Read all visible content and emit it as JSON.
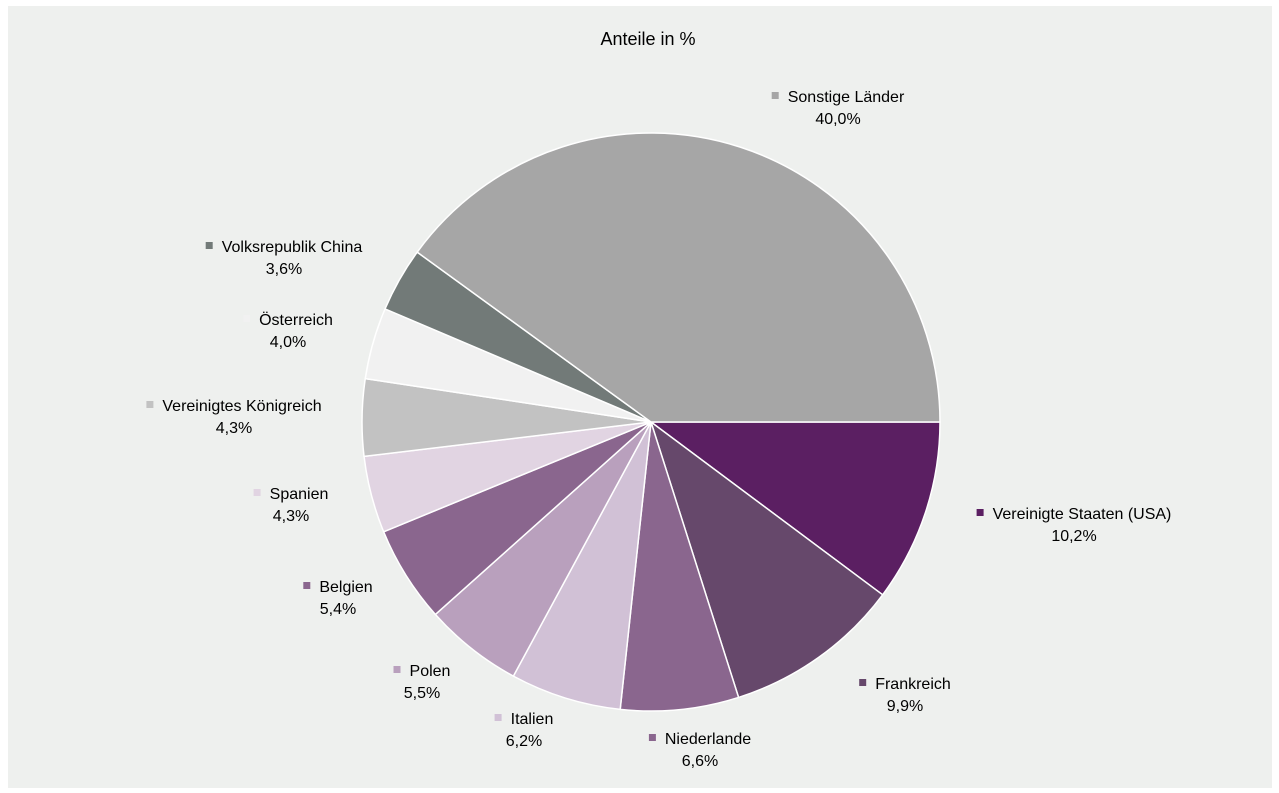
{
  "chart_data": {
    "type": "pie",
    "title": "Anteile in %",
    "start": "3 o'clock",
    "direction": "clockwise",
    "slices": [
      {
        "label": "Vereinigte Staaten (USA)",
        "value": 10.2,
        "value_label": "10,2%",
        "color": "#5b1f62"
      },
      {
        "label": "Frankreich",
        "value": 9.9,
        "value_label": "9,9%",
        "color": "#66486b"
      },
      {
        "label": "Niederlande",
        "value": 6.6,
        "value_label": "6,6%",
        "color": "#8a668e"
      },
      {
        "label": "Italien",
        "value": 6.2,
        "value_label": "6,2%",
        "color": "#d1c1d6"
      },
      {
        "label": "Polen",
        "value": 5.5,
        "value_label": "5,5%",
        "color": "#b9a0bd"
      },
      {
        "label": "Belgien",
        "value": 5.4,
        "value_label": "5,4%",
        "color": "#8a668e"
      },
      {
        "label": "Spanien",
        "value": 4.3,
        "value_label": "4,3%",
        "color": "#e1d4e2"
      },
      {
        "label": "Vereinigtes Königreich",
        "value": 4.3,
        "value_label": "4,3%",
        "color": "#c2c2c2"
      },
      {
        "label": "Österreich",
        "value": 4.0,
        "value_label": "4,0%",
        "color": "#f1f1f1"
      },
      {
        "label": "Volksrepublik China",
        "value": 3.6,
        "value_label": "3,6%",
        "color": "#727a78"
      },
      {
        "label": "Sonstige Länder",
        "value": 40.0,
        "value_label": "40,0%",
        "color": "#a6a6a6"
      }
    ]
  }
}
